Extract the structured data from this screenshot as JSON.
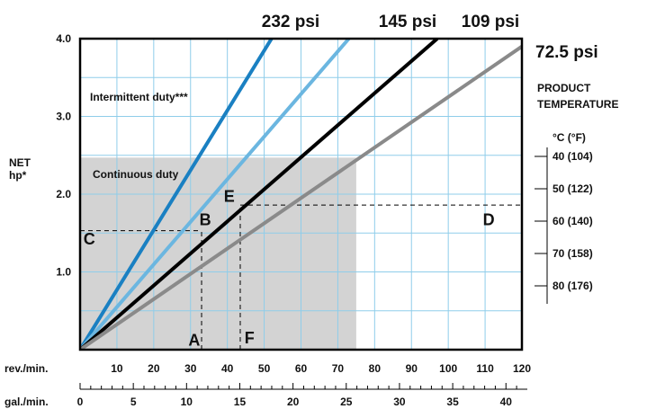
{
  "chart_data": {
    "type": "line",
    "ylabel": "NET\nhp*",
    "ylim": [
      0,
      4.0
    ],
    "y_ticks": [
      "1.0",
      "2.0",
      "3.0",
      "4.0"
    ],
    "xlabel": "rev./min.",
    "xlim": [
      0,
      120
    ],
    "x_ticks": [
      "10",
      "20",
      "30",
      "40",
      "50",
      "60",
      "70",
      "80",
      "90",
      "100",
      "110",
      "120"
    ],
    "x2_label": "gal./min.",
    "x2_ticks": [
      "0",
      "5",
      "10",
      "15",
      "20",
      "25",
      "30",
      "35",
      "40"
    ],
    "series": [
      {
        "name": "232 psi",
        "color": "#1a80c2",
        "x": [
          0,
          52
        ],
        "y": [
          0,
          4.0
        ]
      },
      {
        "name": "145 psi",
        "color": "#6bb6e0",
        "x": [
          0,
          73
        ],
        "y": [
          0,
          4.0
        ]
      },
      {
        "name": "109 psi",
        "color": "#000000",
        "x": [
          0,
          97
        ],
        "y": [
          0,
          4.0
        ]
      },
      {
        "name": "72.5 psi",
        "color": "#8a8a8a",
        "x": [
          0,
          120
        ],
        "y": [
          0,
          3.9
        ]
      }
    ],
    "regions": [
      {
        "label": "Continuous duty",
        "x": [
          0,
          75
        ],
        "y": [
          0,
          2.47
        ],
        "color": "#d3d3d3"
      },
      {
        "label": "Intermittent duty***",
        "color": "#ffffff"
      }
    ],
    "annotations": [
      {
        "label": "A",
        "x": 31,
        "y": 0.05
      },
      {
        "label": "B",
        "x": 34,
        "y": 1.6
      },
      {
        "label": "C",
        "x": 2.5,
        "y": 1.35
      },
      {
        "label": "D",
        "x": 111,
        "y": 1.6
      },
      {
        "label": "E",
        "x": 40.5,
        "y": 1.9
      },
      {
        "label": "F",
        "x": 46,
        "y": 0.08
      }
    ],
    "guides": [
      {
        "type": "h",
        "y": 1.53,
        "x": [
          0,
          33
        ]
      },
      {
        "type": "v",
        "x": 33,
        "y": [
          0,
          1.53
        ]
      },
      {
        "type": "h",
        "y": 1.86,
        "x": [
          43.5,
          120
        ]
      },
      {
        "type": "v",
        "x": 43.5,
        "y": [
          0,
          1.86
        ]
      }
    ],
    "temperature_scale": {
      "title": "PRODUCT\nTEMPERATURE",
      "unit": "°C  (°F)",
      "labels": [
        "40 (104)",
        "50 (122)",
        "60 (140)",
        "70 (158)",
        "80 (176)"
      ]
    },
    "grid": true
  }
}
